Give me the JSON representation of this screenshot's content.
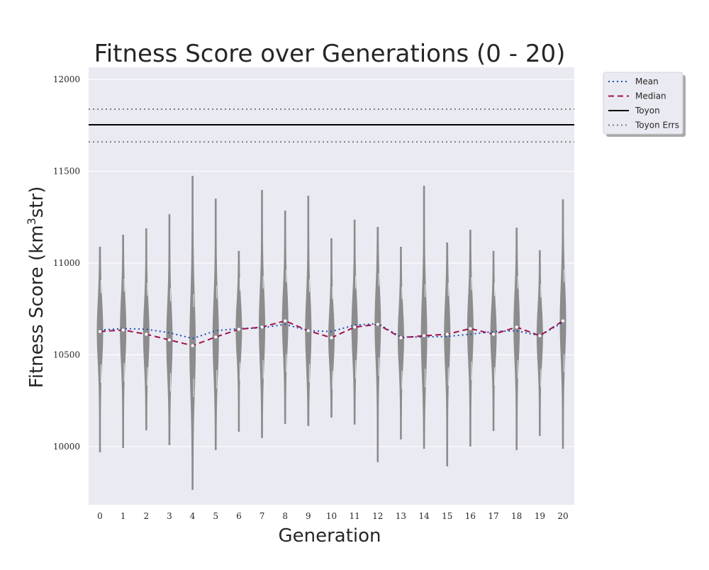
{
  "chart_data": {
    "type": "violin",
    "title": "Fitness Score over Generations (0 - 20)",
    "xlabel": "Generation",
    "ylabel": "Fitness Score (km³str)",
    "ylabel_main": "Fitness Score (km",
    "ylabel_sup": "3",
    "ylabel_end": "str)",
    "ylim": [
      9683,
      12066
    ],
    "yticks": [
      10000,
      10500,
      11000,
      11500,
      12000
    ],
    "categories": [
      "0",
      "1",
      "2",
      "3",
      "4",
      "5",
      "6",
      "7",
      "8",
      "9",
      "10",
      "11",
      "12",
      "13",
      "14",
      "15",
      "16",
      "17",
      "18",
      "19",
      "20"
    ],
    "series": [
      {
        "name": "Mean",
        "style": "dotted",
        "color": "#1f4eb0",
        "values": [
          10635,
          10643,
          10639,
          10620,
          10589,
          10631,
          10643,
          10647,
          10666,
          10631,
          10627,
          10662,
          10670,
          10597,
          10597,
          10600,
          10612,
          10627,
          10631,
          10604,
          10677
        ]
      },
      {
        "name": "Median",
        "style": "dashed",
        "color": "#a0114a",
        "values": [
          10627,
          10635,
          10612,
          10581,
          10550,
          10597,
          10639,
          10651,
          10685,
          10631,
          10593,
          10651,
          10666,
          10593,
          10604,
          10612,
          10643,
          10612,
          10651,
          10604,
          10685
        ]
      }
    ],
    "violin_min": [
      9969,
      9992,
      10089,
      10008,
      9764,
      9981,
      10081,
      10046,
      10124,
      10112,
      10158,
      10120,
      9915,
      10039,
      9988,
      9892,
      10000,
      10085,
      9981,
      10058,
      9988
    ],
    "violin_max": [
      11089,
      11154,
      11189,
      11266,
      11475,
      11351,
      11066,
      11398,
      11286,
      11367,
      11135,
      11236,
      11197,
      11089,
      11421,
      11112,
      11181,
      11066,
      11193,
      11070,
      11347
    ],
    "reference": {
      "name": "Toyon",
      "value": 11753,
      "color": "#000000"
    },
    "reference_errs": {
      "name": "Toyon Errs",
      "values": [
        11838,
        11660
      ],
      "color": "#808080"
    },
    "violin_color": "#8c8c8c",
    "background": "#eaeaf2",
    "grid": true,
    "legend": {
      "placement": "outside-top-right",
      "entries": [
        "Mean",
        "Median",
        "Toyon",
        "Toyon Errs"
      ]
    }
  }
}
